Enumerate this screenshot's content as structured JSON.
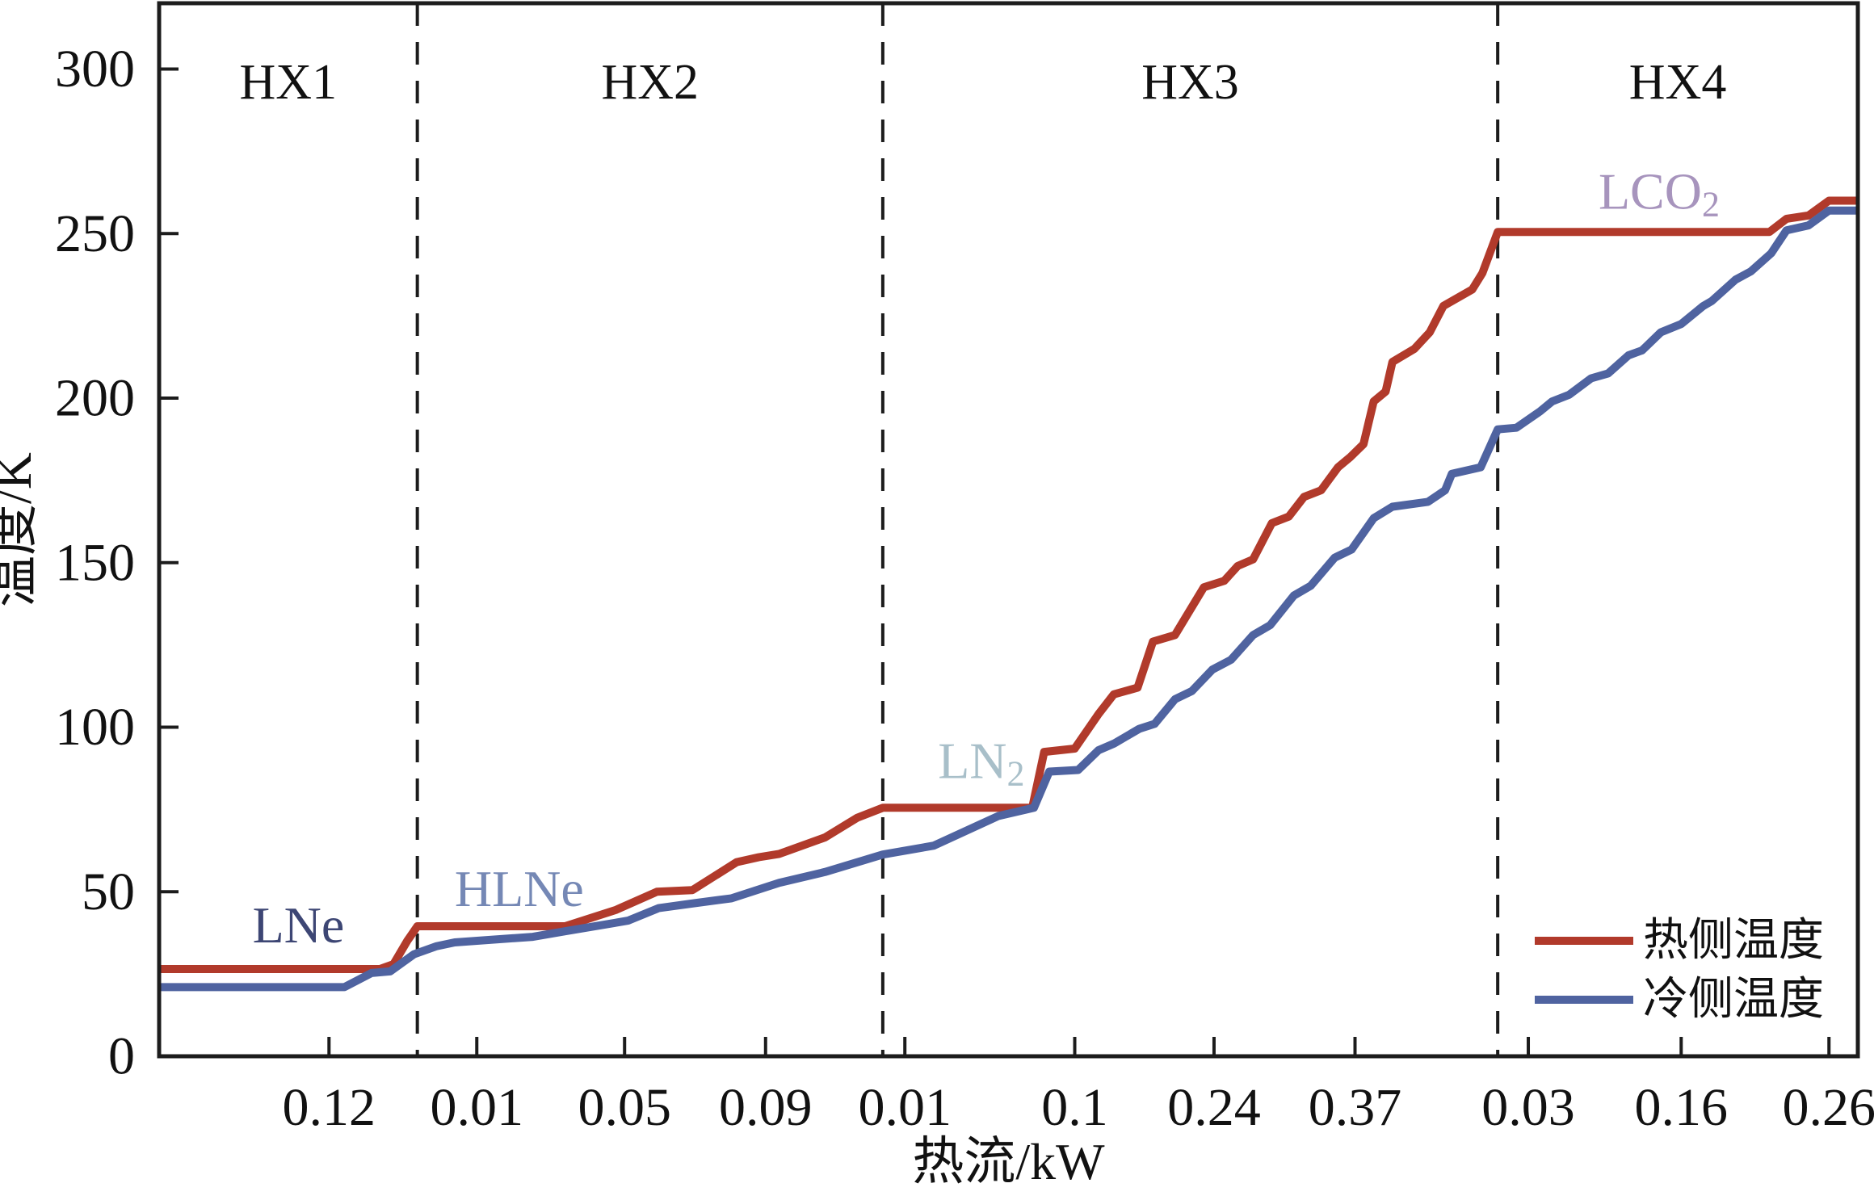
{
  "chart_data": {
    "type": "line",
    "title": "",
    "xlabel": "热流/kW",
    "ylabel": "温度/K",
    "ylim": [
      0,
      320
    ],
    "grid": false,
    "y_ticks": [
      0,
      50,
      100,
      150,
      200,
      250,
      300
    ],
    "x_axis_note": "segmented axis: tick labels give cumulative heat duty (kW) separately inside each heat-exchanger section; pos = fraction of plot width",
    "x_ticks": [
      {
        "label": "0.12",
        "pos": 0.1
      },
      {
        "label": "0.01",
        "pos": 0.187
      },
      {
        "label": "0.05",
        "pos": 0.274
      },
      {
        "label": "0.09",
        "pos": 0.357
      },
      {
        "label": "0.01",
        "pos": 0.439
      },
      {
        "label": "0.1",
        "pos": 0.539
      },
      {
        "label": "0.24",
        "pos": 0.621
      },
      {
        "label": "0.37",
        "pos": 0.704
      },
      {
        "label": "0.03",
        "pos": 0.806
      },
      {
        "label": "0.16",
        "pos": 0.896
      },
      {
        "label": "0.26",
        "pos": 0.983
      }
    ],
    "dividers": [
      0.152,
      0.426,
      0.788
    ],
    "regions": [
      {
        "label": "HX1",
        "center": 0.076,
        "temp": 296
      },
      {
        "label": "HX2",
        "center": 0.289,
        "temp": 296
      },
      {
        "label": "HX3",
        "center": 0.607,
        "temp": 296
      },
      {
        "label": "HX4",
        "center": 0.894,
        "temp": 296
      }
    ],
    "series": [
      {
        "name": "热侧温度",
        "color": "#b13a2b",
        "points": [
          [
            0.0,
            26.5
          ],
          [
            0.13,
            26.5
          ],
          [
            0.138,
            28
          ],
          [
            0.146,
            35
          ],
          [
            0.152,
            39.5
          ],
          [
            0.239,
            39.5
          ],
          [
            0.269,
            44.5
          ],
          [
            0.293,
            50
          ],
          [
            0.314,
            50.5
          ],
          [
            0.34,
            59
          ],
          [
            0.353,
            60.5
          ],
          [
            0.365,
            61.5
          ],
          [
            0.392,
            66.5
          ],
          [
            0.411,
            72.5
          ],
          [
            0.426,
            75.5
          ],
          [
            0.514,
            75.5
          ],
          [
            0.521,
            92.5
          ],
          [
            0.539,
            93.5
          ],
          [
            0.553,
            104
          ],
          [
            0.562,
            110
          ],
          [
            0.576,
            112
          ],
          [
            0.585,
            126
          ],
          [
            0.598,
            128
          ],
          [
            0.615,
            142.5
          ],
          [
            0.627,
            144.5
          ],
          [
            0.635,
            149
          ],
          [
            0.644,
            151
          ],
          [
            0.655,
            162
          ],
          [
            0.665,
            164
          ],
          [
            0.674,
            170
          ],
          [
            0.684,
            172
          ],
          [
            0.694,
            179
          ],
          [
            0.701,
            182
          ],
          [
            0.709,
            186
          ],
          [
            0.715,
            199
          ],
          [
            0.722,
            202
          ],
          [
            0.726,
            211
          ],
          [
            0.739,
            215
          ],
          [
            0.748,
            220
          ],
          [
            0.756,
            228
          ],
          [
            0.773,
            233
          ],
          [
            0.779,
            238
          ],
          [
            0.788,
            250.5
          ],
          [
            0.948,
            250.5
          ],
          [
            0.958,
            254.5
          ],
          [
            0.971,
            255.5
          ],
          [
            0.983,
            260
          ],
          [
            1.0,
            260
          ]
        ]
      },
      {
        "name": "冷侧温度",
        "color": "#4f63a0",
        "points": [
          [
            0.0,
            21
          ],
          [
            0.109,
            21
          ],
          [
            0.125,
            25.3
          ],
          [
            0.136,
            25.8
          ],
          [
            0.15,
            31
          ],
          [
            0.163,
            33.4
          ],
          [
            0.174,
            34.6
          ],
          [
            0.22,
            36.3
          ],
          [
            0.239,
            38
          ],
          [
            0.276,
            41.2
          ],
          [
            0.294,
            45
          ],
          [
            0.315,
            46.5
          ],
          [
            0.337,
            48
          ],
          [
            0.365,
            52.7
          ],
          [
            0.392,
            56
          ],
          [
            0.426,
            61.3
          ],
          [
            0.456,
            64
          ],
          [
            0.494,
            73
          ],
          [
            0.515,
            75.5
          ],
          [
            0.524,
            86.5
          ],
          [
            0.541,
            87
          ],
          [
            0.553,
            93
          ],
          [
            0.562,
            95
          ],
          [
            0.577,
            99.5
          ],
          [
            0.586,
            101
          ],
          [
            0.598,
            108.5
          ],
          [
            0.608,
            111
          ],
          [
            0.62,
            117.5
          ],
          [
            0.631,
            120.5
          ],
          [
            0.644,
            128
          ],
          [
            0.654,
            131
          ],
          [
            0.668,
            140
          ],
          [
            0.678,
            143
          ],
          [
            0.692,
            151.5
          ],
          [
            0.702,
            154
          ],
          [
            0.715,
            163.5
          ],
          [
            0.726,
            167
          ],
          [
            0.747,
            168.5
          ],
          [
            0.757,
            172
          ],
          [
            0.761,
            177
          ],
          [
            0.778,
            179
          ],
          [
            0.788,
            190.5
          ],
          [
            0.799,
            191
          ],
          [
            0.813,
            196
          ],
          [
            0.82,
            199
          ],
          [
            0.83,
            201
          ],
          [
            0.843,
            206
          ],
          [
            0.853,
            207.5
          ],
          [
            0.865,
            213
          ],
          [
            0.873,
            214.5
          ],
          [
            0.884,
            220
          ],
          [
            0.896,
            222.5
          ],
          [
            0.909,
            228
          ],
          [
            0.914,
            229.5
          ],
          [
            0.928,
            236
          ],
          [
            0.937,
            238.5
          ],
          [
            0.949,
            244
          ],
          [
            0.958,
            251
          ],
          [
            0.971,
            252.5
          ],
          [
            0.983,
            257
          ],
          [
            1.0,
            257
          ]
        ]
      }
    ],
    "annotations": [
      {
        "text": "LNe",
        "sub": "",
        "pos": 0.082,
        "temp": 40,
        "color": "#3d4674"
      },
      {
        "text": "HLNe",
        "sub": "",
        "pos": 0.212,
        "temp": 51,
        "color": "#7588b5"
      },
      {
        "text": "LN",
        "sub": "2",
        "pos": 0.484,
        "temp": 90,
        "color": "#a8bfc9"
      },
      {
        "text": "LCO",
        "sub": "2",
        "pos": 0.883,
        "temp": 263,
        "color": "#a794bd"
      }
    ],
    "legend": {
      "position": "lower right",
      "entries": [
        {
          "label": "热侧温度",
          "color": "#b13a2b"
        },
        {
          "label": "冷侧温度",
          "color": "#4f63a0"
        }
      ]
    },
    "axis_color": "#1c1c1c",
    "text_color": "#111111"
  }
}
